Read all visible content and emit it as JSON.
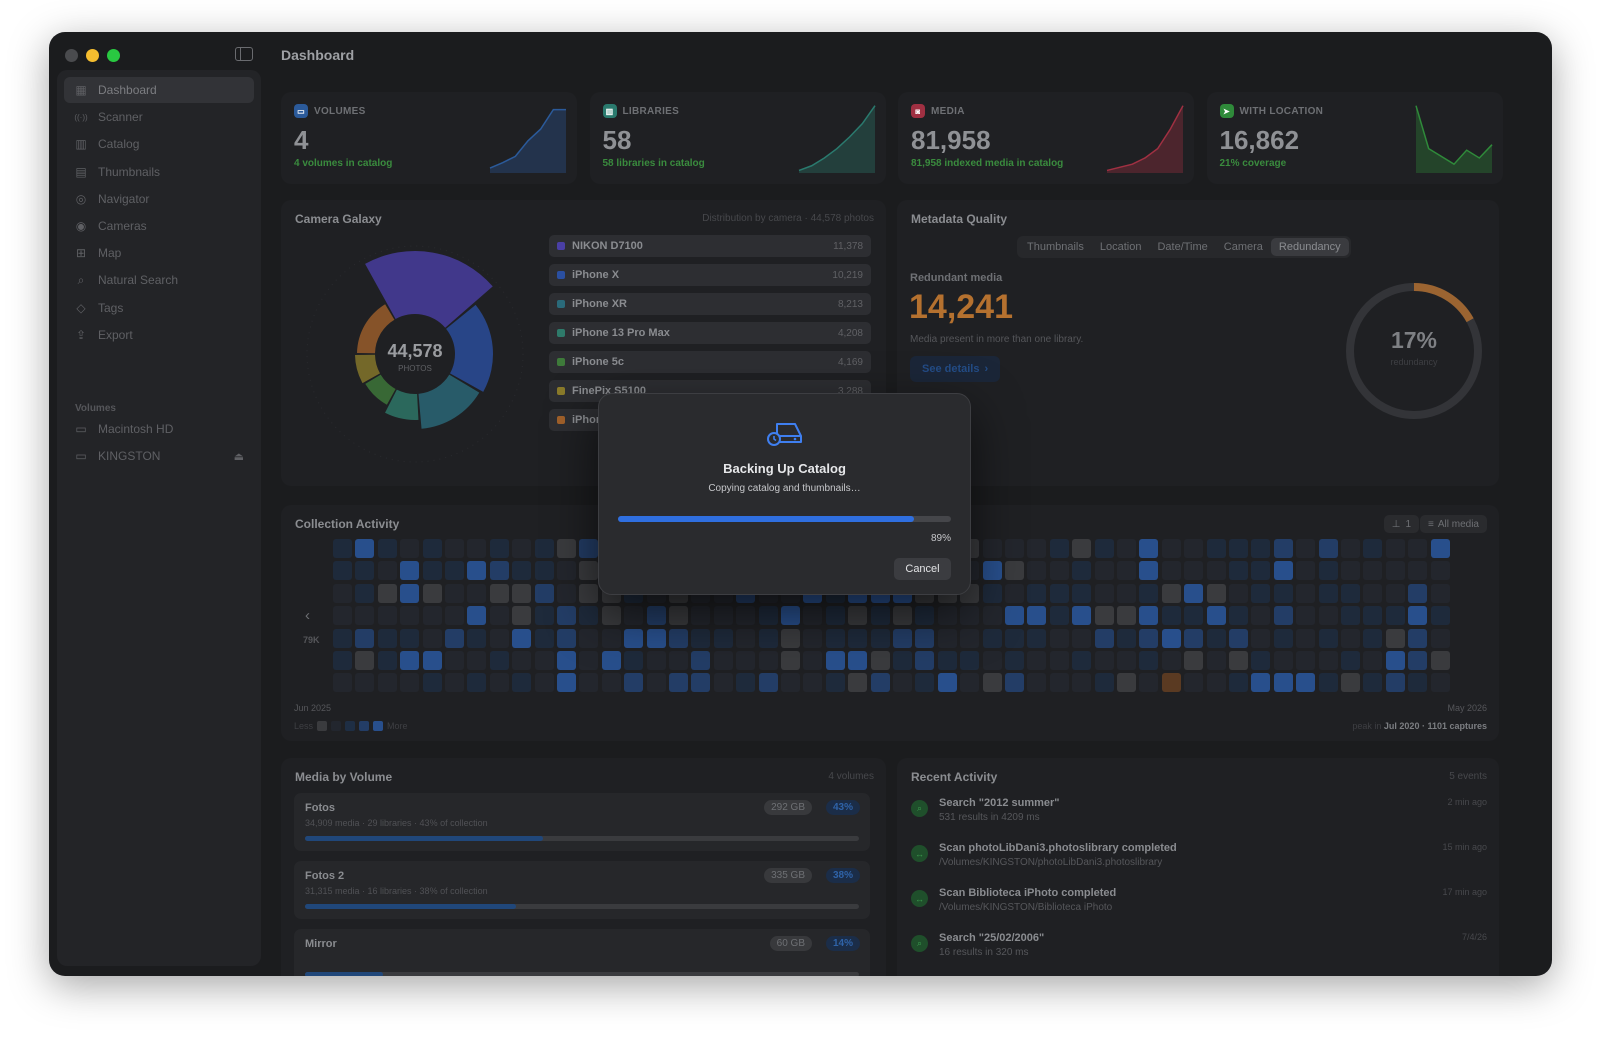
{
  "window": {
    "title": "Dashboard"
  },
  "sidebar": {
    "items": [
      {
        "label": "Dashboard",
        "icon": "grid-icon",
        "active": true
      },
      {
        "label": "Scanner",
        "icon": "scanner-icon"
      },
      {
        "label": "Catalog",
        "icon": "catalog-icon"
      },
      {
        "label": "Thumbnails",
        "icon": "thumbnails-icon"
      },
      {
        "label": "Navigator",
        "icon": "compass-icon"
      },
      {
        "label": "Cameras",
        "icon": "camera-icon"
      },
      {
        "label": "Map",
        "icon": "map-icon"
      },
      {
        "label": "Natural Search",
        "icon": "search-icon"
      },
      {
        "label": "Tags",
        "icon": "tag-icon"
      },
      {
        "label": "Export",
        "icon": "export-icon"
      }
    ],
    "volumes_header": "Volumes",
    "volumes": [
      {
        "label": "Macintosh HD",
        "icon": "drive-icon"
      },
      {
        "label": "KINGSTON",
        "icon": "drive-icon",
        "eject": true
      }
    ]
  },
  "stats": [
    {
      "label": "VOLUMES",
      "value": "4",
      "sub": "4 volumes in catalog",
      "color": "#2b5a9a",
      "spark": [
        5,
        12,
        20,
        40,
        55,
        80,
        80
      ]
    },
    {
      "label": "LIBRARIES",
      "value": "58",
      "sub": "58 libraries in catalog",
      "color": "#2a7a6e",
      "spark": [
        2,
        8,
        18,
        30,
        45,
        62,
        85
      ]
    },
    {
      "label": "MEDIA",
      "value": "81,958",
      "sub": "81,958 indexed media in catalog",
      "color": "#a03042",
      "spark": [
        2,
        6,
        10,
        18,
        30,
        55,
        85
      ]
    },
    {
      "label": "WITH LOCATION",
      "value": "16,862",
      "sub": "21% coverage",
      "color": "#2f8a3a",
      "spark": [
        85,
        30,
        20,
        10,
        28,
        18,
        35
      ]
    }
  ],
  "camera_galaxy": {
    "title": "Camera Galaxy",
    "meta": "Distribution by camera · 44,578 photos",
    "center_value": "44,578",
    "center_label": "PHOTOS",
    "cameras": [
      {
        "name": "NIKON D7100",
        "count": "11,378",
        "color": "#4a3fa5"
      },
      {
        "name": "iPhone X",
        "count": "10,219",
        "color": "#2a4fa0"
      },
      {
        "name": "iPhone XR",
        "count": "8,213",
        "color": "#2a6a7a"
      },
      {
        "name": "iPhone 13 Pro Max",
        "count": "4,208",
        "color": "#2e7a6a"
      },
      {
        "name": "iPhone 5c",
        "count": "4,169",
        "color": "#3e7a3a"
      },
      {
        "name": "FinePix S5100",
        "count": "3,288",
        "color": "#8a7a2a"
      },
      {
        "name": "iPhone",
        "count": "",
        "color": "#a0602a"
      }
    ]
  },
  "metadata_quality": {
    "title": "Metadata Quality",
    "tabs": [
      "Thumbnails",
      "Location",
      "Date/Time",
      "Camera",
      "Redundancy"
    ],
    "active_tab": "Redundancy",
    "heading": "Redundant media",
    "value": "14,241",
    "description": "Media present in more than one library.",
    "link": "See details",
    "gauge_value": "17%",
    "gauge_label": "redundancy",
    "gauge_fraction": 0.17,
    "accent": "#b5712f"
  },
  "collection_activity": {
    "title": "Collection Activity",
    "pin_label": "1",
    "filter_label": "All media",
    "y_label": "79K",
    "start_label": "Jun 2025",
    "end_label": "May 2026",
    "legend_less": "Less",
    "legend_more": "More",
    "peak_prefix": "peak in",
    "peak_value": "Jul 2020 · 1101 captures"
  },
  "media_by_volume": {
    "title": "Media by Volume",
    "meta": "4 volumes",
    "volumes": [
      {
        "name": "Fotos",
        "sub": "34,909 media · 29 libraries · 43% of collection",
        "size": "292 GB",
        "pct": "43%",
        "fraction": 0.43
      },
      {
        "name": "Fotos 2",
        "sub": "31,315 media · 16 libraries · 38% of collection",
        "size": "335 GB",
        "pct": "38%",
        "fraction": 0.38
      },
      {
        "name": "Mirror",
        "sub": "",
        "size": "60 GB",
        "pct": "14%",
        "fraction": 0.14
      }
    ]
  },
  "recent_activity": {
    "title": "Recent Activity",
    "meta": "5 events",
    "events": [
      {
        "title": "Search \"2012 summer\"",
        "sub": "531 results in 4209 ms",
        "time": "2 min ago",
        "icon": "search-icon"
      },
      {
        "title": "Scan photoLibDani3.photoslibrary completed",
        "sub": "/Volumes/KINGSTON/photoLibDani3.photoslibrary",
        "time": "15 min ago",
        "icon": "scan-icon"
      },
      {
        "title": "Scan Biblioteca iPhoto completed",
        "sub": "/Volumes/KINGSTON/Biblioteca iPhoto",
        "time": "17 min ago",
        "icon": "scan-icon"
      },
      {
        "title": "Search \"25/02/2006\"",
        "sub": "16 results in 320 ms",
        "time": "7/4/26",
        "icon": "search-icon"
      }
    ]
  },
  "modal": {
    "icon": "backup-drive-icon",
    "title": "Backing Up Catalog",
    "subtitle": "Copying catalog and thumbnails…",
    "progress": 0.89,
    "progress_label": "89%",
    "cancel_label": "Cancel"
  }
}
